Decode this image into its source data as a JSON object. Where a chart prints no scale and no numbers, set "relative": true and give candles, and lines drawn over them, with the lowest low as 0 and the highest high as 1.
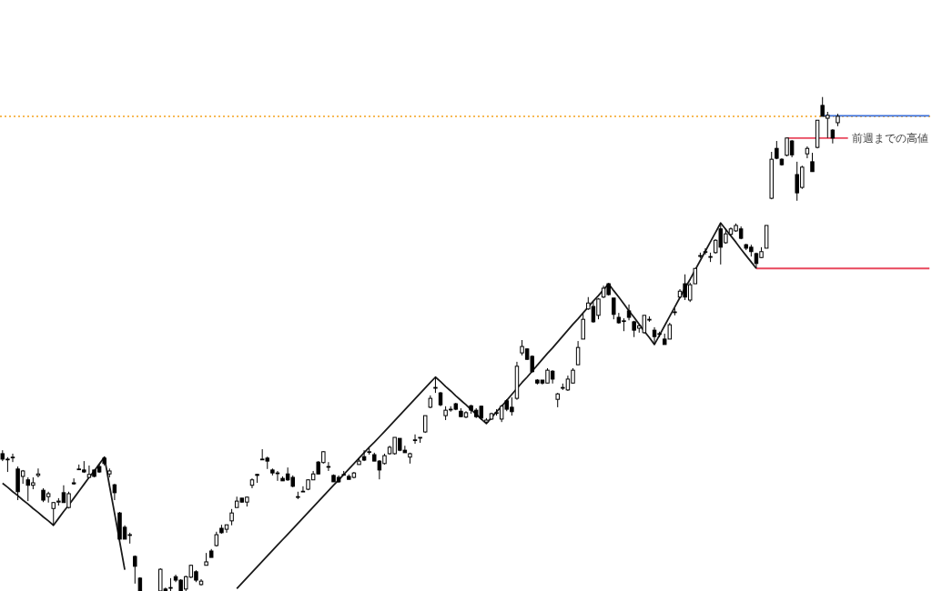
{
  "chart_data": {
    "type": "candlestick",
    "relative": true,
    "color": "#000000",
    "categories": [
      null,
      null,
      null,
      null,
      null,
      null,
      null,
      null,
      null,
      null,
      null,
      null,
      null,
      null,
      null,
      null,
      null,
      null,
      null,
      null,
      null,
      null,
      null,
      null,
      null,
      null,
      null,
      null,
      null,
      null,
      null,
      null,
      null,
      null,
      null,
      null,
      null,
      null,
      null,
      null,
      null,
      null,
      null,
      null,
      null,
      null,
      null,
      null,
      null,
      null,
      null,
      null,
      null,
      null,
      null,
      null,
      null,
      null,
      null,
      null,
      null,
      null,
      null,
      null,
      null,
      null,
      null,
      null,
      null,
      null,
      null,
      null,
      null,
      null,
      null,
      null,
      null,
      null,
      null,
      null,
      null,
      null,
      null,
      null,
      null,
      null,
      null,
      null,
      null,
      null,
      null,
      null,
      null,
      null,
      null,
      null,
      null,
      null,
      null,
      null,
      null,
      null,
      null,
      null,
      null,
      null,
      null,
      null,
      null,
      null,
      null,
      null,
      null,
      null,
      null,
      null,
      null,
      null,
      null,
      null,
      null,
      null,
      null,
      null,
      null,
      null,
      null,
      null,
      null,
      null,
      null,
      null,
      null,
      null,
      null,
      null,
      null,
      null,
      null,
      null,
      null,
      null,
      null,
      null,
      null,
      null,
      null,
      null,
      null,
      null,
      null,
      null,
      null,
      null,
      null,
      null,
      null,
      null,
      null,
      null,
      null,
      null,
      null,
      null,
      null,
      null,
      null,
      null,
      null,
      null,
      null,
      null,
      null,
      null,
      null,
      null,
      null,
      null,
      null,
      null,
      null,
      null,
      null
    ],
    "ohlc": [
      [
        0.278,
        0.285,
        0.263,
        0.267
      ],
      [
        0.267,
        0.271,
        0.241,
        0.267
      ],
      [
        0.271,
        0.278,
        0.261,
        0.271
      ],
      [
        0.247,
        0.252,
        0.184,
        0.201
      ],
      [
        0.232,
        0.245,
        0.217,
        0.243
      ],
      [
        0.225,
        0.23,
        0.182,
        0.214
      ],
      [
        0.214,
        0.23,
        0.206,
        0.219
      ],
      [
        0.234,
        0.248,
        0.23,
        0.237
      ],
      [
        0.204,
        0.208,
        0.18,
        0.184
      ],
      [
        0.191,
        0.201,
        0.179,
        0.197
      ],
      [
        0.167,
        0.18,
        0.133,
        0.179
      ],
      [
        0.18,
        0.188,
        0.173,
        0.182
      ],
      [
        0.199,
        0.214,
        0.179,
        0.179
      ],
      [
        0.169,
        0.201,
        0.167,
        0.197
      ],
      [
        0.219,
        0.228,
        0.215,
        0.217
      ],
      [
        0.247,
        0.256,
        0.245,
        0.247
      ],
      [
        0.245,
        0.263,
        0.239,
        0.241
      ],
      [
        0.23,
        0.254,
        0.23,
        0.236
      ],
      [
        0.245,
        0.245,
        0.23,
        0.232
      ],
      [
        0.252,
        0.256,
        0.239,
        0.241
      ],
      [
        0.269,
        0.271,
        0.254,
        0.258
      ],
      [
        0.237,
        0.248,
        0.23,
        0.243
      ],
      [
        0.215,
        0.217,
        0.184,
        0.199
      ],
      [
        0.158,
        0.16,
        0.105,
        0.105
      ],
      [
        0.129,
        0.133,
        0.105,
        0.105
      ],
      [
        0.114,
        0.118,
        0.096,
        0.114
      ],
      [
        0.07,
        0.072,
        0.015,
        0.05
      ],
      [
        0.026,
        0.028,
        0,
        0
      ],
      null,
      null,
      null,
      [
        0,
        0.046,
        0,
        0.044
      ],
      [
        0.004,
        0.007,
        0,
        0
      ],
      [
        0.007,
        0.026,
        0,
        0.007
      ],
      [
        0.029,
        0.033,
        0.018,
        0.022
      ],
      [
        0.022,
        0.024,
        0,
        0
      ],
      [
        0.004,
        0.031,
        0,
        0.029
      ],
      [
        0.028,
        0.053,
        0.026,
        0.052
      ],
      [
        0.039,
        0.042,
        0.018,
        0.022
      ],
      [
        0.013,
        0.024,
        0.011,
        0.02
      ],
      [
        0.052,
        0.077,
        0.052,
        0.059
      ],
      [
        0.081,
        0.085,
        0.068,
        0.068
      ],
      [
        0.092,
        0.12,
        0.09,
        0.114
      ],
      [
        0.127,
        0.134,
        0.116,
        0.118
      ],
      [
        0.125,
        0.134,
        0.118,
        0.134
      ],
      [
        0.142,
        0.166,
        0.133,
        0.158
      ],
      [
        0.169,
        0.191,
        0.169,
        0.182
      ],
      [
        0.188,
        0.188,
        0.179,
        0.18
      ],
      [
        0.18,
        0.191,
        0.171,
        0.19
      ],
      [
        0.214,
        0.228,
        0.208,
        0.225
      ],
      [
        0.236,
        0.237,
        0.219,
        0.234
      ],
      [
        0.267,
        0.287,
        0.265,
        0.267
      ],
      [
        0.269,
        0.272,
        0.247,
        0.263
      ],
      [
        0.245,
        0.248,
        0.234,
        0.239
      ],
      [
        0.239,
        0.243,
        0.223,
        0.239
      ],
      [
        0.228,
        0.232,
        0.223,
        0.223
      ],
      [
        0.237,
        0.25,
        0.223,
        0.225
      ],
      [
        0.23,
        0.234,
        0.21,
        0.212
      ],
      [
        0.191,
        0.201,
        0.186,
        0.191
      ],
      [
        0.202,
        0.212,
        0.201,
        0.202
      ],
      [
        0.206,
        0.226,
        0.204,
        0.225
      ],
      [
        0.225,
        0.243,
        0.225,
        0.237
      ],
      [
        0.261,
        0.263,
        0.236,
        0.237
      ],
      [
        0.26,
        0.283,
        0.258,
        0.282
      ],
      [
        0.252,
        0.261,
        0.243,
        0.252
      ],
      [
        0.234,
        0.236,
        0.221,
        0.221
      ],
      [
        0.23,
        0.234,
        0.219,
        0.221
      ],
      [
        0.236,
        0.243,
        0.234,
        0.236
      ],
      [
        0.232,
        0.236,
        0.226,
        0.226
      ],
      [
        0.23,
        0.241,
        0.228,
        0.239
      ],
      [
        0.256,
        0.269,
        0.256,
        0.263
      ],
      [
        0.272,
        0.285,
        0.263,
        0.265
      ],
      [
        0.282,
        0.289,
        0.276,
        0.282
      ],
      [
        0.276,
        0.28,
        0.263,
        0.263
      ],
      [
        0.263,
        0.265,
        0.226,
        0.245
      ],
      [
        0.258,
        0.278,
        0.256,
        0.274
      ],
      [
        0.278,
        0.294,
        0.276,
        0.291
      ],
      [
        0.278,
        0.311,
        0.276,
        0.311
      ],
      [
        0.309,
        0.309,
        0.283,
        0.285
      ],
      [
        0.285,
        0.294,
        0.28,
        0.28
      ],
      [
        0.271,
        0.28,
        0.258,
        0.278
      ],
      [
        0.306,
        0.317,
        0.298,
        0.306
      ],
      [
        0.311,
        0.311,
        0.3,
        0.311
      ],
      [
        0.322,
        0.355,
        0.32,
        0.355
      ],
      [
        0.372,
        0.396,
        0.37,
        0.39
      ],
      [
        0.412,
        0.433,
        0.401,
        0.412
      ],
      [
        0.401,
        0.403,
        0.374,
        0.377
      ],
      [
        0.355,
        0.374,
        0.346,
        0.366
      ],
      [
        0.368,
        0.374,
        0.363,
        0.368
      ],
      [
        0.379,
        0.381,
        0.366,
        0.368
      ],
      [
        0.364,
        0.37,
        0.352,
        0.353
      ],
      [
        0.352,
        0.364,
        0.35,
        0.361
      ],
      [
        0.375,
        0.377,
        0.359,
        0.366
      ],
      [
        0.366,
        0.37,
        0.35,
        0.353
      ],
      [
        0.374,
        0.375,
        0.346,
        0.35
      ],
      [
        0.342,
        0.35,
        0.339,
        0.346
      ],
      [
        0.348,
        0.361,
        0.346,
        0.359
      ],
      [
        0.361,
        0.368,
        0.355,
        0.361
      ],
      [
        0.348,
        0.377,
        0.342,
        0.374
      ],
      [
        0.385,
        0.388,
        0.364,
        0.368
      ],
      [
        0.372,
        0.392,
        0.355,
        0.363
      ],
      [
        0.39,
        0.464,
        0.387,
        0.455
      ],
      [
        0.482,
        0.508,
        0.477,
        0.495
      ],
      [
        0.49,
        0.491,
        0.468,
        0.469
      ],
      [
        0.475,
        0.477,
        0.442,
        0.444
      ],
      [
        0.427,
        0.429,
        0.418,
        0.421
      ],
      [
        0.427,
        0.427,
        0.418,
        0.421
      ],
      [
        0.421,
        0.451,
        0.421,
        0.447
      ],
      [
        0.445,
        0.447,
        0.42,
        0.429
      ],
      [
        0.388,
        0.401,
        0.372,
        0.399
      ],
      [
        0.412,
        0.42,
        0.407,
        0.412
      ],
      [
        0.407,
        0.436,
        0.405,
        0.429
      ],
      [
        0.421,
        0.451,
        0.42,
        0.447
      ],
      [
        0.458,
        0.506,
        0.458,
        0.493
      ],
      [
        0.51,
        0.561,
        0.51,
        0.55
      ],
      [
        0.571,
        0.595,
        0.569,
        0.583
      ],
      [
        0.576,
        0.585,
        0.543,
        0.545
      ],
      [
        0.558,
        0.593,
        0.55,
        0.591
      ],
      [
        0.595,
        0.618,
        0.593,
        0.613
      ],
      [
        0.622,
        0.622,
        0.598,
        0.6
      ],
      [
        0.593,
        0.593,
        0.55,
        0.56
      ],
      [
        0.554,
        0.563,
        0.541,
        0.543
      ],
      [
        0.547,
        0.552,
        0.526,
        0.547
      ],
      [
        0.567,
        0.58,
        0.548,
        0.554
      ],
      [
        0.545,
        0.547,
        0.514,
        0.528
      ],
      [
        0.532,
        0.539,
        0.523,
        0.537
      ],
      [
        0.523,
        0.558,
        0.521,
        0.558
      ],
      [
        0.55,
        0.556,
        0.545,
        0.55
      ],
      [
        0.528,
        0.534,
        0.499,
        0.515
      ],
      [
        0.521,
        0.525,
        0.514,
        0.521
      ],
      [
        0.51,
        0.521,
        0.499,
        0.499
      ],
      [
        0.51,
        0.543,
        0.51,
        0.539
      ],
      [
        0.565,
        0.572,
        0.558,
        0.565
      ],
      [
        0.595,
        0.611,
        0.593,
        0.607
      ],
      [
        0.622,
        0.641,
        0.589,
        0.595
      ],
      [
        0.589,
        0.624,
        0.585,
        0.62
      ],
      [
        0.622,
        0.653,
        0.622,
        0.653
      ],
      [
        0.679,
        0.685,
        0.674,
        0.679
      ],
      [
        0.687,
        0.694,
        0.681,
        0.687
      ],
      [
        0.677,
        0.685,
        0.666,
        0.677
      ],
      [
        0.685,
        0.712,
        0.683,
        0.71
      ],
      [
        0.733,
        0.745,
        0.661,
        0.696
      ],
      [
        0.705,
        0.733,
        0.703,
        0.723
      ],
      [
        0.722,
        0.736,
        0.72,
        0.733
      ],
      [
        0.729,
        0.744,
        0.727,
        0.74
      ],
      [
        0.733,
        0.738,
        0.712,
        0.714
      ],
      [
        0.701,
        0.703,
        0.69,
        0.694
      ],
      [
        0.696,
        0.701,
        0.677,
        0.687
      ],
      [
        0.683,
        0.685,
        0.653,
        0.663
      ],
      [
        0.675,
        0.696,
        0.674,
        0.687
      ],
      [
        0.694,
        0.74,
        0.694,
        0.74
      ],
      [
        0.795,
        0.889,
        0.793,
        0.874
      ],
      [
        0.896,
        0.911,
        0.874,
        0.876
      ],
      [
        0.874,
        0.876,
        0.861,
        0.863
      ],
      [
        0.882,
        0.917,
        0.88,
        0.917
      ],
      [
        0.911,
        0.913,
        0.878,
        0.883
      ],
      [
        0.843,
        0.869,
        0.79,
        0.806
      ],
      [
        0.817,
        0.861,
        0.814,
        0.858
      ],
      [
        0.885,
        0.9,
        0.876,
        0.896
      ],
      [
        0.869,
        0.887,
        0.849,
        0.849
      ],
      [
        0.898,
        0.953,
        0.896,
        0.953
      ],
      [
        0.983,
        1,
        0.961,
        0.961
      ],
      [
        0.957,
        0.97,
        0.917,
        0.963
      ],
      [
        0.933,
        0.935,
        0.906,
        0.917
      ],
      [
        0.948,
        0.966,
        0.941,
        0.961
      ],
      null,
      null,
      null,
      null,
      null,
      null,
      null,
      null,
      null,
      null,
      null,
      null,
      null,
      null,
      null,
      null,
      null,
      null
    ],
    "series": [
      {
        "type": "line",
        "color": "#1a1a1a",
        "values": [
          0.218,
          0.21,
          0.201,
          0.193,
          0.184,
          0.176,
          0.167,
          0.159,
          0.15,
          0.142,
          0.133,
          0.147,
          0.161,
          0.174,
          0.188,
          0.202,
          0.216,
          0.23,
          0.243,
          0.257,
          0.271,
          0.213,
          0.157,
          0.1,
          0.043,
          null,
          null,
          null,
          null,
          null,
          null,
          null,
          null,
          null,
          null,
          null,
          null,
          null,
          null,
          null,
          null,
          null,
          null,
          null,
          null,
          null,
          0.005,
          0.016,
          0.027,
          0.038,
          0.049,
          0.06,
          0.071,
          0.082,
          0.093,
          0.104,
          0.115,
          0.126,
          0.137,
          0.148,
          0.159,
          0.17,
          0.181,
          0.192,
          0.203,
          0.214,
          0.225,
          0.236,
          0.247,
          0.258,
          0.269,
          0.28,
          0.291,
          0.301,
          0.312,
          0.323,
          0.334,
          0.345,
          0.356,
          0.367,
          0.378,
          0.389,
          0.4,
          0.411,
          0.422,
          0.433,
          0.424,
          0.414,
          0.405,
          0.395,
          0.386,
          0.377,
          0.367,
          0.358,
          0.348,
          0.339,
          0.351,
          0.363,
          0.374,
          0.386,
          0.398,
          0.41,
          0.422,
          0.433,
          0.445,
          0.457,
          0.469,
          0.481,
          0.492,
          0.504,
          0.516,
          0.528,
          0.54,
          0.551,
          0.563,
          0.575,
          0.587,
          0.598,
          0.61,
          0.622,
          0.608,
          0.595,
          0.581,
          0.567,
          0.554,
          0.54,
          0.526,
          0.513,
          0.499,
          0.518,
          0.537,
          0.556,
          0.575,
          0.594,
          0.613,
          0.631,
          0.65,
          0.669,
          0.688,
          0.707,
          0.726,
          0.745,
          0.732,
          0.719,
          0.706,
          0.692,
          0.679,
          0.666,
          0.653,
          null,
          null,
          null,
          null,
          null,
          null,
          null,
          null,
          null,
          null,
          null,
          null,
          null,
          null,
          null,
          null,
          null,
          null,
          null,
          null,
          null,
          null,
          null,
          null,
          null,
          null,
          null,
          null,
          null,
          null,
          null,
          null,
          null,
          null
        ]
      },
      {
        "type": "line",
        "color": "#e8475c",
        "values": [
          null,
          null,
          null,
          null,
          null,
          null,
          null,
          null,
          null,
          null,
          null,
          null,
          null,
          null,
          null,
          null,
          null,
          null,
          null,
          null,
          null,
          null,
          null,
          null,
          null,
          null,
          null,
          null,
          null,
          null,
          null,
          null,
          null,
          null,
          null,
          null,
          null,
          null,
          null,
          null,
          null,
          null,
          null,
          null,
          null,
          null,
          null,
          null,
          null,
          null,
          null,
          null,
          null,
          null,
          null,
          null,
          null,
          null,
          null,
          null,
          null,
          null,
          null,
          null,
          null,
          null,
          null,
          null,
          null,
          null,
          null,
          null,
          null,
          null,
          null,
          null,
          null,
          null,
          null,
          null,
          null,
          null,
          null,
          null,
          null,
          null,
          null,
          null,
          null,
          null,
          null,
          null,
          null,
          null,
          null,
          null,
          null,
          null,
          null,
          null,
          null,
          null,
          null,
          null,
          null,
          null,
          null,
          null,
          null,
          null,
          null,
          null,
          null,
          null,
          null,
          null,
          null,
          null,
          null,
          null,
          null,
          null,
          null,
          null,
          null,
          null,
          null,
          null,
          null,
          null,
          null,
          null,
          null,
          null,
          null,
          null,
          null,
          null,
          null,
          null,
          null,
          null,
          null,
          null,
          null,
          null,
          null,
          null,
          0.653,
          0.653,
          0.653,
          0.653,
          0.653,
          0.653,
          0.653,
          0.653,
          0.653,
          0.653,
          0.653,
          0.653,
          0.653,
          0.653,
          0.653,
          0.653,
          0.653,
          0.653,
          0.653,
          0.653,
          0.653,
          0.653,
          0.653,
          0.653,
          0.653,
          0.653,
          0.653,
          0.653,
          0.653,
          0.653,
          0.653,
          0.653,
          0.653,
          0.653,
          0.653
        ]
      },
      {
        "type": "line",
        "name": "前週までの高値",
        "color": "#e8475c",
        "values": [
          null,
          null,
          null,
          null,
          null,
          null,
          null,
          null,
          null,
          null,
          null,
          null,
          null,
          null,
          null,
          null,
          null,
          null,
          null,
          null,
          null,
          null,
          null,
          null,
          null,
          null,
          null,
          null,
          null,
          null,
          null,
          null,
          null,
          null,
          null,
          null,
          null,
          null,
          null,
          null,
          null,
          null,
          null,
          null,
          null,
          null,
          null,
          null,
          null,
          null,
          null,
          null,
          null,
          null,
          null,
          null,
          null,
          null,
          null,
          null,
          null,
          null,
          null,
          null,
          null,
          null,
          null,
          null,
          null,
          null,
          null,
          null,
          null,
          null,
          null,
          null,
          null,
          null,
          null,
          null,
          null,
          null,
          null,
          null,
          null,
          null,
          null,
          null,
          null,
          null,
          null,
          null,
          null,
          null,
          null,
          null,
          null,
          null,
          null,
          null,
          null,
          null,
          null,
          null,
          null,
          null,
          null,
          null,
          null,
          null,
          null,
          null,
          null,
          null,
          null,
          null,
          null,
          null,
          null,
          null,
          null,
          null,
          null,
          null,
          null,
          null,
          null,
          null,
          null,
          null,
          null,
          null,
          null,
          null,
          null,
          null,
          null,
          null,
          null,
          null,
          null,
          null,
          null,
          null,
          null,
          null,
          null,
          null,
          null,
          null,
          null,
          null,
          null,
          null,
          0.917,
          0.917,
          0.917,
          0.917,
          0.917,
          0.917,
          0.917,
          0.917,
          0.917,
          0.917,
          0.917,
          0.917,
          0.917,
          null,
          null,
          null,
          null,
          null,
          null,
          null,
          null,
          null,
          null,
          null,
          null,
          null,
          null,
          null,
          null
        ]
      },
      {
        "type": "line",
        "color": "#3b6fd8",
        "values": [
          null,
          null,
          null,
          null,
          null,
          null,
          null,
          null,
          null,
          null,
          null,
          null,
          null,
          null,
          null,
          null,
          null,
          null,
          null,
          null,
          null,
          null,
          null,
          null,
          null,
          null,
          null,
          null,
          null,
          null,
          null,
          null,
          null,
          null,
          null,
          null,
          null,
          null,
          null,
          null,
          null,
          null,
          null,
          null,
          null,
          null,
          null,
          null,
          null,
          null,
          null,
          null,
          null,
          null,
          null,
          null,
          null,
          null,
          null,
          null,
          null,
          null,
          null,
          null,
          null,
          null,
          null,
          null,
          null,
          null,
          null,
          null,
          null,
          null,
          null,
          null,
          null,
          null,
          null,
          null,
          null,
          null,
          null,
          null,
          null,
          null,
          null,
          null,
          null,
          null,
          null,
          null,
          null,
          null,
          null,
          null,
          null,
          null,
          null,
          null,
          null,
          null,
          null,
          null,
          null,
          null,
          null,
          null,
          null,
          null,
          null,
          null,
          null,
          null,
          null,
          null,
          null,
          null,
          null,
          null,
          null,
          null,
          null,
          null,
          null,
          null,
          null,
          null,
          null,
          null,
          null,
          null,
          null,
          null,
          null,
          null,
          null,
          null,
          null,
          null,
          null,
          null,
          null,
          null,
          null,
          null,
          null,
          null,
          null,
          null,
          null,
          null,
          null,
          null,
          null,
          null,
          null,
          null,
          null,
          null,
          null,
          0.962,
          0.962,
          0.962,
          0.962,
          0.962,
          0.962,
          0.962,
          0.962,
          0.962,
          0.962,
          0.962,
          0.962,
          0.962,
          0.962,
          0.962,
          0.962,
          0.962,
          0.962,
          0.962,
          0.962,
          0.962,
          0.962
        ]
      }
    ],
    "ref_lines": [
      {
        "axis": "y",
        "value": 0.961,
        "color": "#f5a21e",
        "line_style": "dotted"
      }
    ]
  }
}
